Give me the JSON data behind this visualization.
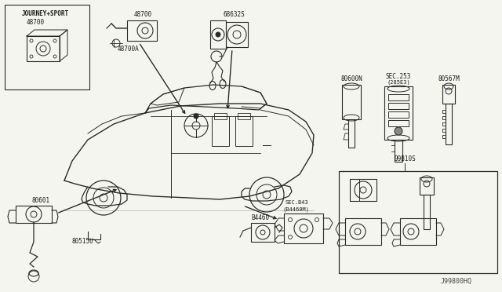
{
  "bg_color": "#f5f5f0",
  "line_color": "#2a2a2a",
  "text_color": "#1a1a1a",
  "labels": {
    "journey_sport": "JOURNEY+SPORT",
    "part_48700": "48700",
    "part_48700a": "48700A",
    "part_68632s": "68632S",
    "part_80600n": "80600N",
    "part_sec253": "SEC.253",
    "part_285e3": "(285E3)",
    "part_80567m": "80567M",
    "part_80601": "80601",
    "part_80515u": "80515U",
    "part_b4460": "B4460",
    "part_sec_b43": "SEC.B43",
    "part_b4460m": "(B4460M)",
    "part_99b10s": "99B10S",
    "diagram_code": "J99800HQ"
  }
}
